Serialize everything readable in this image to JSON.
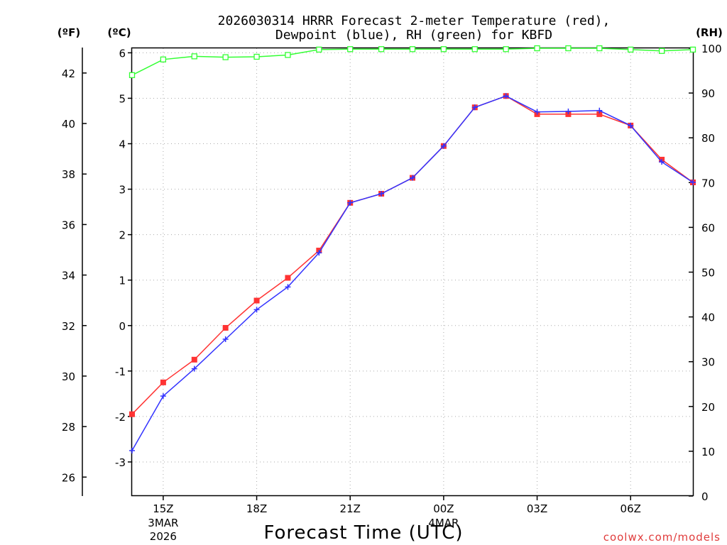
{
  "chart_data": {
    "type": "line",
    "title_line1": "2026030314 HRRR Forecast 2-meter Temperature (red),",
    "title_line2": "Dewpoint (blue), RH (green) for KBFD",
    "xlabel": "Forecast Time (UTC)",
    "watermark": "coolwx.com/models",
    "left_unit_f": "(ºF)",
    "left_unit_c": "(ºC)",
    "right_unit": "(RH)",
    "x_hours": [
      14,
      15,
      16,
      17,
      18,
      19,
      20,
      21,
      22,
      23,
      24,
      25,
      26,
      27,
      28,
      29,
      30,
      31,
      32
    ],
    "x_ticks": [
      {
        "hour": 15,
        "label": "15Z",
        "sub1": "3MAR",
        "sub2": "2026"
      },
      {
        "hour": 18,
        "label": "18Z",
        "sub1": "",
        "sub2": ""
      },
      {
        "hour": 21,
        "label": "21Z",
        "sub1": "",
        "sub2": ""
      },
      {
        "hour": 24,
        "label": "00Z",
        "sub1": "4MAR",
        "sub2": ""
      },
      {
        "hour": 27,
        "label": "03Z",
        "sub1": "",
        "sub2": ""
      },
      {
        "hour": 30,
        "label": "06Z",
        "sub1": "",
        "sub2": ""
      }
    ],
    "c_ticks": [
      "-3",
      "-2",
      "-1",
      "0",
      "1",
      "2",
      "3",
      "4",
      "5",
      "6"
    ],
    "c_tick_values": [
      -3,
      -2,
      -1,
      0,
      1,
      2,
      3,
      4,
      5,
      6
    ],
    "f_ticks": [
      "26",
      "28",
      "30",
      "32",
      "34",
      "36",
      "38",
      "40",
      "42"
    ],
    "f_tick_values": [
      26,
      28,
      30,
      32,
      34,
      36,
      38,
      40,
      42
    ],
    "rh_ticks": [
      "0",
      "10",
      "20",
      "30",
      "40",
      "50",
      "60",
      "70",
      "80",
      "90",
      "100"
    ],
    "rh_tick_values": [
      0,
      10,
      20,
      30,
      40,
      50,
      60,
      70,
      80,
      90,
      100
    ],
    "c_range": [
      -3.75,
      6.1
    ],
    "rh_range": [
      0,
      100
    ],
    "series": [
      {
        "name": "Temperature",
        "color": "#ff3333",
        "marker": "square",
        "axis": "c",
        "values": [
          -1.95,
          -1.25,
          -0.75,
          -0.05,
          0.55,
          1.05,
          1.65,
          2.7,
          2.9,
          3.25,
          3.95,
          4.8,
          5.05,
          4.65,
          4.65,
          4.65,
          4.4,
          3.65,
          3.15
        ]
      },
      {
        "name": "Dewpoint",
        "color": "#3333ff",
        "marker": "plus",
        "axis": "c",
        "values": [
          -2.75,
          -1.55,
          -0.95,
          -0.3,
          0.35,
          0.85,
          1.6,
          2.7,
          2.9,
          3.25,
          3.95,
          4.8,
          5.05,
          4.7,
          4.71,
          4.73,
          4.4,
          3.6,
          3.15
        ]
      },
      {
        "name": "RH",
        "color": "#33ff33",
        "marker": "open-square",
        "axis": "rh",
        "values": [
          94,
          97.5,
          98.2,
          98,
          98.1,
          98.5,
          99.7,
          99.8,
          99.8,
          99.8,
          99.8,
          99.8,
          99.8,
          100,
          100,
          100,
          99.7,
          99.4,
          99.7
        ]
      }
    ]
  }
}
